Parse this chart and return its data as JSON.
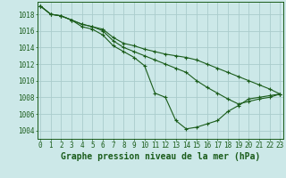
{
  "title": "Graphe pression niveau de la mer (hPa)",
  "bg_color": "#cce8e8",
  "grid_color": "#aacccc",
  "line_color": "#1a5c1a",
  "marker_color": "#1a5c1a",
  "x_ticks": [
    0,
    1,
    2,
    3,
    4,
    5,
    6,
    7,
    8,
    9,
    10,
    11,
    12,
    13,
    14,
    15,
    16,
    17,
    18,
    19,
    20,
    21,
    22,
    23
  ],
  "y_ticks": [
    1004,
    1006,
    1008,
    1010,
    1012,
    1014,
    1016,
    1018
  ],
  "ylim": [
    1003.0,
    1019.5
  ],
  "xlim": [
    -0.3,
    23.3
  ],
  "series1": [
    1019.0,
    1018.0,
    1017.8,
    1017.3,
    1016.5,
    1016.2,
    1015.5,
    1014.2,
    1013.5,
    1012.8,
    1011.8,
    1008.5,
    1008.0,
    1005.2,
    1004.2,
    1004.4,
    1004.8,
    1005.2,
    1006.3,
    1007.0,
    1007.8,
    1008.0,
    1008.2,
    1008.4
  ],
  "series2": [
    1019.0,
    1018.0,
    1017.8,
    1017.3,
    1016.8,
    1016.5,
    1016.0,
    1014.8,
    1014.0,
    1013.5,
    1013.0,
    1012.5,
    1012.0,
    1011.5,
    1011.0,
    1010.0,
    1009.2,
    1008.5,
    1007.8,
    1007.2,
    1007.5,
    1007.8,
    1008.0,
    1008.4
  ],
  "series3": [
    1019.0,
    1018.0,
    1017.8,
    1017.3,
    1016.8,
    1016.5,
    1016.2,
    1015.2,
    1014.5,
    1014.2,
    1013.8,
    1013.5,
    1013.2,
    1013.0,
    1012.8,
    1012.5,
    1012.0,
    1011.5,
    1011.0,
    1010.5,
    1010.0,
    1009.5,
    1009.0,
    1008.4
  ],
  "title_color": "#1a5c1a",
  "title_fontsize": 7.0,
  "tick_fontsize": 5.5,
  "tick_color": "#1a5c1a",
  "axis_color": "#1a5c1a",
  "figsize": [
    3.2,
    2.0
  ],
  "dpi": 100
}
